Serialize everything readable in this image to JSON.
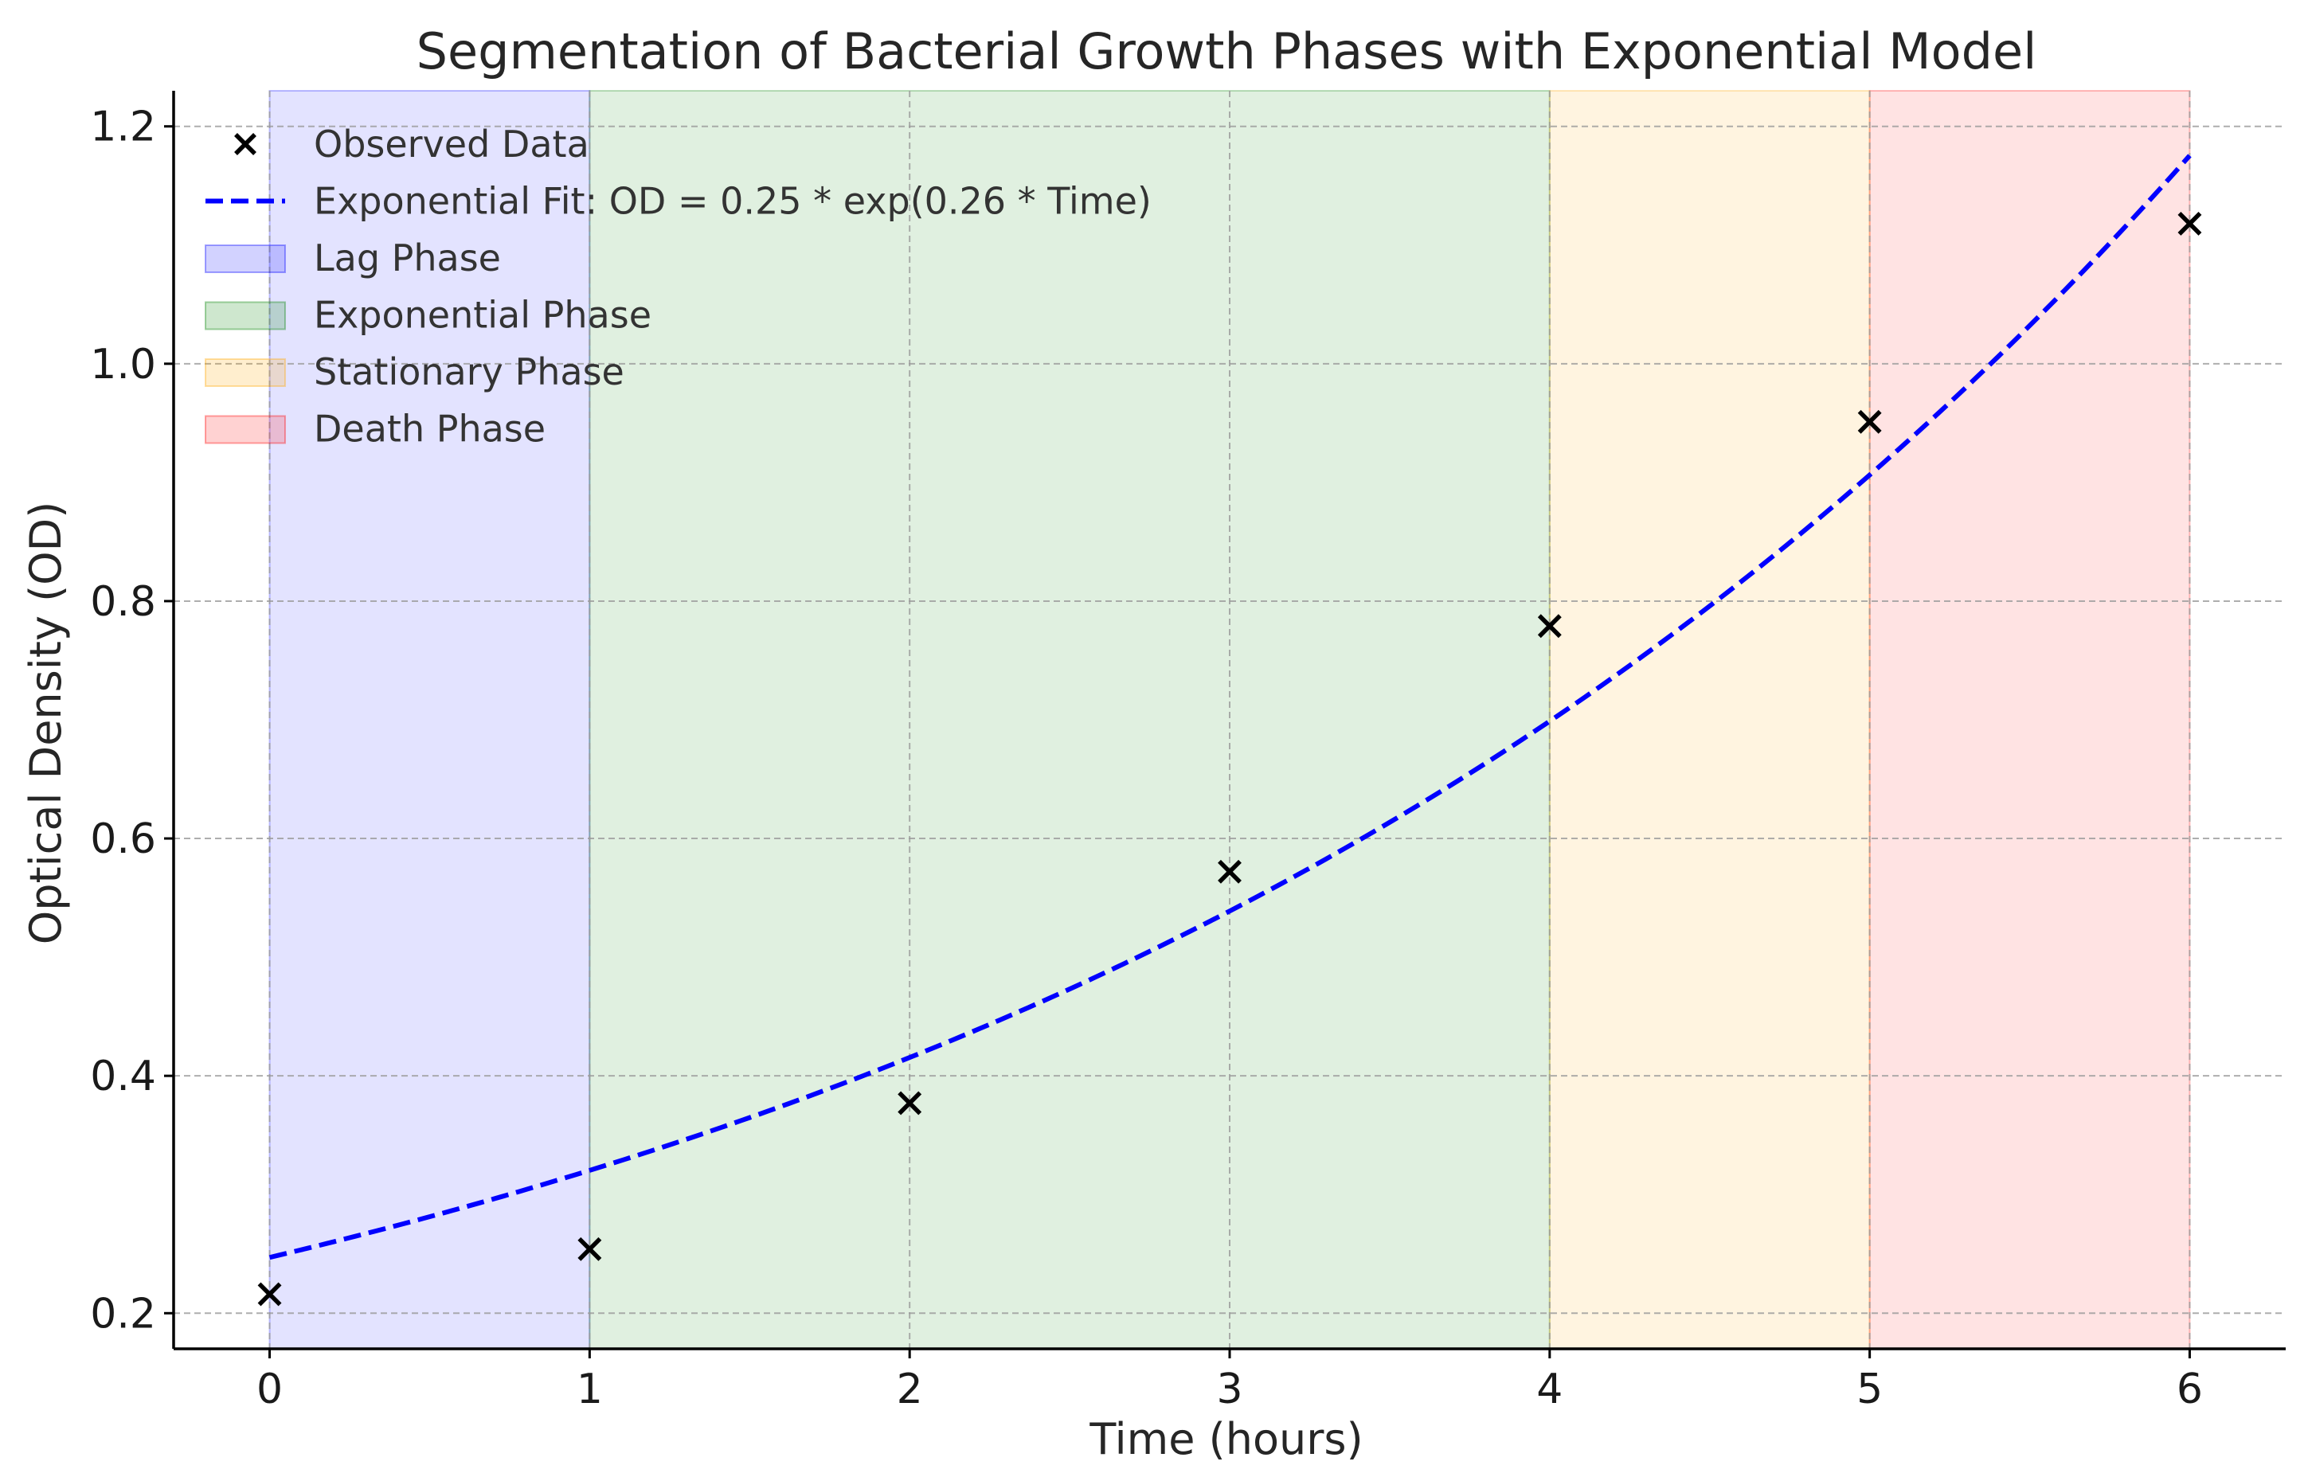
{
  "chart_data": {
    "type": "scatter",
    "title": "Segmentation of Bacterial Growth Phases with Exponential Model",
    "xlabel": "Time (hours)",
    "ylabel": "Optical Density (OD)",
    "xlim": [
      -0.3,
      6.3
    ],
    "ylim": [
      0.17,
      1.23
    ],
    "xticks": [
      0,
      1,
      2,
      3,
      4,
      5,
      6
    ],
    "xtick_labels": [
      "0",
      "1",
      "2",
      "3",
      "4",
      "5",
      "6"
    ],
    "yticks": [
      0.2,
      0.4,
      0.6,
      0.8,
      1.0,
      1.2
    ],
    "ytick_labels": [
      "0.2",
      "0.4",
      "0.6",
      "0.8",
      "1.0",
      "1.2"
    ],
    "grid": true,
    "legend_position": "upper-left",
    "series": [
      {
        "name": "Observed Data",
        "kind": "scatter",
        "marker": "x",
        "color": "#000000",
        "x": [
          0,
          1,
          2,
          3,
          4,
          5,
          6
        ],
        "y": [
          0.216,
          0.254,
          0.377,
          0.572,
          0.779,
          0.951,
          1.118
        ]
      },
      {
        "name": "Exponential Fit: OD = 0.25 * exp(0.26 * Time)",
        "kind": "line",
        "style": "dashed",
        "color": "#0000ff",
        "model": {
          "a": 0.247,
          "b": 0.26
        },
        "x_range": [
          0,
          6
        ]
      }
    ],
    "regions": [
      {
        "name": "Lag Phase",
        "x_start": 0,
        "x_end": 1,
        "color": "#0000ff",
        "alpha": 0.11
      },
      {
        "name": "Exponential Phase",
        "x_start": 1,
        "x_end": 4,
        "color": "#008000",
        "alpha": 0.12
      },
      {
        "name": "Stationary Phase",
        "x_start": 4,
        "x_end": 5,
        "color": "#ffa500",
        "alpha": 0.12
      },
      {
        "name": "Death Phase",
        "x_start": 5,
        "x_end": 6,
        "color": "#ff0000",
        "alpha": 0.11
      }
    ]
  }
}
